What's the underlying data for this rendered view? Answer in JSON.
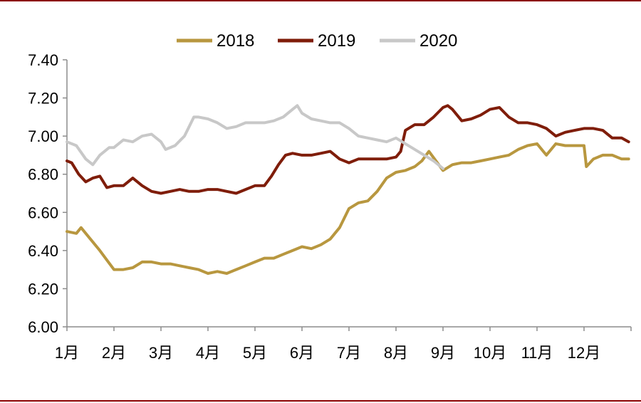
{
  "chart_data": {
    "type": "line",
    "title": "",
    "xlabel": "",
    "ylabel": "",
    "ylim": [
      6.0,
      7.4
    ],
    "yticks": [
      "7.40",
      "7.20",
      "7.00",
      "6.80",
      "6.60",
      "6.40",
      "6.20",
      "6.00"
    ],
    "yticks_values": [
      7.4,
      7.2,
      7.0,
      6.8,
      6.6,
      6.4,
      6.2,
      6.0
    ],
    "x_range_month": [
      1,
      13
    ],
    "months": [
      "1月",
      "2月",
      "3月",
      "4月",
      "5月",
      "6月",
      "7月",
      "8月",
      "9月",
      "10月",
      "11月",
      "12月"
    ],
    "grid": false,
    "legend_position": "top-center",
    "series": [
      {
        "name": "2018",
        "color": "#b8973f",
        "x": [
          1.0,
          1.2,
          1.3,
          1.5,
          1.7,
          1.85,
          2.0,
          2.2,
          2.4,
          2.6,
          2.8,
          3.0,
          3.2,
          3.4,
          3.6,
          3.8,
          4.0,
          4.2,
          4.4,
          4.6,
          4.8,
          5.0,
          5.2,
          5.4,
          5.6,
          5.8,
          6.0,
          6.2,
          6.4,
          6.6,
          6.8,
          7.0,
          7.2,
          7.4,
          7.6,
          7.8,
          8.0,
          8.2,
          8.4,
          8.55,
          8.7,
          8.85,
          9.0,
          9.2,
          9.4,
          9.6,
          9.8,
          10.0,
          10.2,
          10.4,
          10.6,
          10.8,
          11.0,
          11.2,
          11.4,
          11.6,
          11.8,
          12.0,
          12.05,
          12.2,
          12.4,
          12.6,
          12.8,
          12.95
        ],
        "values": [
          6.5,
          6.49,
          6.52,
          6.46,
          6.4,
          6.35,
          6.3,
          6.3,
          6.31,
          6.34,
          6.34,
          6.33,
          6.33,
          6.32,
          6.31,
          6.3,
          6.28,
          6.29,
          6.28,
          6.3,
          6.32,
          6.34,
          6.36,
          6.36,
          6.38,
          6.4,
          6.42,
          6.41,
          6.43,
          6.46,
          6.52,
          6.62,
          6.65,
          6.66,
          6.71,
          6.78,
          6.81,
          6.82,
          6.84,
          6.87,
          6.92,
          6.87,
          6.82,
          6.85,
          6.86,
          6.86,
          6.87,
          6.88,
          6.89,
          6.9,
          6.93,
          6.95,
          6.96,
          6.9,
          6.96,
          6.95,
          6.95,
          6.95,
          6.84,
          6.88,
          6.9,
          6.9,
          6.88,
          6.88
        ]
      },
      {
        "name": "2019",
        "color": "#7f1d0a",
        "x": [
          1.0,
          1.1,
          1.25,
          1.4,
          1.55,
          1.7,
          1.85,
          2.0,
          2.2,
          2.4,
          2.6,
          2.8,
          3.0,
          3.2,
          3.4,
          3.6,
          3.8,
          4.0,
          4.2,
          4.4,
          4.6,
          4.8,
          5.0,
          5.2,
          5.35,
          5.5,
          5.65,
          5.8,
          6.0,
          6.2,
          6.4,
          6.6,
          6.8,
          7.0,
          7.2,
          7.4,
          7.6,
          7.8,
          8.0,
          8.1,
          8.2,
          8.4,
          8.6,
          8.8,
          9.0,
          9.1,
          9.2,
          9.4,
          9.6,
          9.8,
          10.0,
          10.2,
          10.4,
          10.6,
          10.8,
          11.0,
          11.2,
          11.4,
          11.6,
          11.8,
          12.0,
          12.2,
          12.4,
          12.6,
          12.8,
          12.95
        ],
        "values": [
          6.87,
          6.86,
          6.8,
          6.76,
          6.78,
          6.79,
          6.73,
          6.74,
          6.74,
          6.78,
          6.74,
          6.71,
          6.7,
          6.71,
          6.72,
          6.71,
          6.71,
          6.72,
          6.72,
          6.71,
          6.7,
          6.72,
          6.74,
          6.74,
          6.79,
          6.85,
          6.9,
          6.91,
          6.9,
          6.9,
          6.91,
          6.92,
          6.88,
          6.86,
          6.88,
          6.88,
          6.88,
          6.88,
          6.89,
          6.92,
          7.03,
          7.06,
          7.06,
          7.1,
          7.15,
          7.16,
          7.14,
          7.08,
          7.09,
          7.11,
          7.14,
          7.15,
          7.1,
          7.07,
          7.07,
          7.06,
          7.04,
          7.0,
          7.02,
          7.03,
          7.04,
          7.04,
          7.03,
          6.99,
          6.99,
          6.97
        ]
      },
      {
        "name": "2020",
        "color": "#c8c8c8",
        "x": [
          1.0,
          1.2,
          1.4,
          1.55,
          1.7,
          1.9,
          2.0,
          2.2,
          2.4,
          2.6,
          2.8,
          3.0,
          3.1,
          3.3,
          3.5,
          3.6,
          3.7,
          3.8,
          4.0,
          4.2,
          4.4,
          4.6,
          4.8,
          5.0,
          5.2,
          5.4,
          5.6,
          5.8,
          5.9,
          6.0,
          6.2,
          6.4,
          6.6,
          6.8,
          7.0,
          7.2,
          7.4,
          7.6,
          7.8,
          8.0,
          8.2,
          8.4,
          8.6,
          8.8,
          9.0
        ],
        "values": [
          6.97,
          6.95,
          6.88,
          6.85,
          6.9,
          6.94,
          6.94,
          6.98,
          6.97,
          7.0,
          7.01,
          6.97,
          6.93,
          6.95,
          7.0,
          7.05,
          7.1,
          7.1,
          7.09,
          7.07,
          7.04,
          7.05,
          7.07,
          7.07,
          7.07,
          7.08,
          7.1,
          7.14,
          7.16,
          7.12,
          7.09,
          7.08,
          7.07,
          7.07,
          7.04,
          7.0,
          6.99,
          6.98,
          6.97,
          6.99,
          6.96,
          6.93,
          6.9,
          6.87,
          6.83
        ]
      }
    ]
  }
}
